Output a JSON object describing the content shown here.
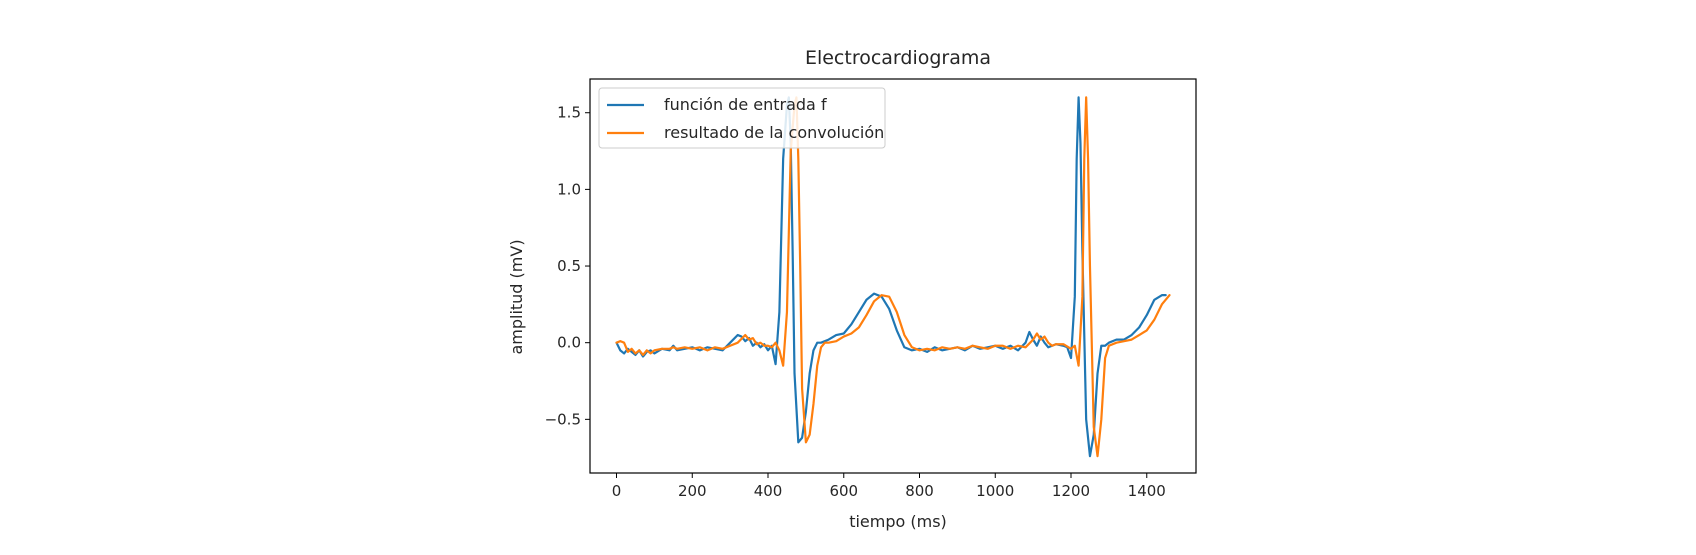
{
  "chart_data": {
    "type": "line",
    "title": "Electrocardiograma",
    "xlabel": "tiempo (ms)",
    "ylabel": "amplitud (mV)",
    "xlim": [
      -70,
      1530
    ],
    "ylim": [
      -0.85,
      1.72
    ],
    "xticks": [
      0,
      200,
      400,
      600,
      800,
      1000,
      1200,
      1400
    ],
    "yticks": [
      -0.5,
      0.0,
      0.5,
      1.0,
      1.5
    ],
    "ytick_labels": [
      "−0.5",
      "0.0",
      "0.5",
      "1.0",
      "1.5"
    ],
    "grid": false,
    "legend_position": "top-left",
    "series": [
      {
        "name": "función de entrada f",
        "color": "#1f77b4",
        "x": [
          0,
          10,
          20,
          30,
          40,
          50,
          60,
          70,
          80,
          90,
          100,
          120,
          140,
          150,
          160,
          180,
          200,
          220,
          240,
          260,
          280,
          300,
          320,
          330,
          340,
          350,
          360,
          370,
          380,
          390,
          400,
          410,
          420,
          430,
          440,
          450,
          455,
          460,
          465,
          470,
          480,
          490,
          500,
          510,
          520,
          530,
          540,
          560,
          580,
          600,
          620,
          640,
          660,
          680,
          700,
          720,
          740,
          760,
          780,
          800,
          820,
          840,
          860,
          880,
          900,
          920,
          940,
          960,
          980,
          1000,
          1020,
          1040,
          1060,
          1080,
          1090,
          1100,
          1110,
          1120,
          1130,
          1140,
          1160,
          1180,
          1190,
          1200,
          1210,
          1215,
          1220,
          1225,
          1230,
          1240,
          1250,
          1260,
          1270,
          1280,
          1290,
          1300,
          1320,
          1340,
          1360,
          1380,
          1400,
          1420,
          1440,
          1450
        ],
        "y": [
          0.0,
          -0.05,
          -0.07,
          -0.04,
          -0.06,
          -0.08,
          -0.05,
          -0.09,
          -0.06,
          -0.05,
          -0.07,
          -0.04,
          -0.05,
          -0.02,
          -0.05,
          -0.04,
          -0.03,
          -0.05,
          -0.03,
          -0.04,
          -0.05,
          0.0,
          0.05,
          0.04,
          0.01,
          0.03,
          -0.02,
          0.0,
          -0.03,
          -0.01,
          -0.05,
          -0.02,
          -0.14,
          0.2,
          1.2,
          1.55,
          1.6,
          1.3,
          0.6,
          -0.2,
          -0.65,
          -0.62,
          -0.45,
          -0.2,
          -0.05,
          0.0,
          0.0,
          0.02,
          0.05,
          0.06,
          0.12,
          0.2,
          0.28,
          0.32,
          0.3,
          0.22,
          0.08,
          -0.03,
          -0.05,
          -0.04,
          -0.06,
          -0.03,
          -0.05,
          -0.04,
          -0.03,
          -0.05,
          -0.02,
          -0.04,
          -0.03,
          -0.02,
          -0.04,
          -0.02,
          -0.05,
          0.0,
          0.07,
          0.02,
          -0.02,
          0.04,
          0.0,
          -0.03,
          -0.01,
          -0.02,
          -0.03,
          -0.1,
          0.3,
          1.2,
          1.6,
          1.3,
          0.6,
          -0.5,
          -0.74,
          -0.6,
          -0.2,
          -0.02,
          -0.02,
          0.0,
          0.02,
          0.02,
          0.05,
          0.1,
          0.18,
          0.28,
          0.31,
          0.31
        ]
      },
      {
        "name": "resultado de la convolución",
        "color": "#ff7f0e",
        "x": [
          0,
          10,
          20,
          30,
          40,
          50,
          60,
          70,
          80,
          90,
          100,
          120,
          140,
          150,
          160,
          180,
          200,
          220,
          240,
          260,
          280,
          300,
          320,
          340,
          350,
          360,
          370,
          380,
          390,
          400,
          410,
          420,
          430,
          440,
          450,
          460,
          470,
          475,
          480,
          485,
          490,
          500,
          510,
          520,
          530,
          540,
          550,
          560,
          580,
          600,
          620,
          640,
          660,
          680,
          700,
          720,
          740,
          760,
          780,
          800,
          820,
          840,
          860,
          880,
          900,
          920,
          940,
          960,
          980,
          1000,
          1020,
          1040,
          1060,
          1080,
          1100,
          1110,
          1120,
          1130,
          1140,
          1150,
          1160,
          1180,
          1200,
          1210,
          1220,
          1230,
          1235,
          1240,
          1245,
          1250,
          1260,
          1270,
          1280,
          1290,
          1300,
          1320,
          1340,
          1360,
          1380,
          1400,
          1420,
          1440,
          1460
        ],
        "y": [
          0.0,
          0.01,
          0.0,
          -0.06,
          -0.04,
          -0.07,
          -0.05,
          -0.08,
          -0.05,
          -0.07,
          -0.05,
          -0.04,
          -0.04,
          -0.03,
          -0.04,
          -0.03,
          -0.04,
          -0.03,
          -0.05,
          -0.03,
          -0.04,
          -0.02,
          0.0,
          0.05,
          0.02,
          0.03,
          -0.01,
          0.0,
          -0.02,
          -0.02,
          -0.03,
          0.0,
          -0.05,
          -0.15,
          0.2,
          1.25,
          1.55,
          1.6,
          1.2,
          0.5,
          -0.3,
          -0.65,
          -0.6,
          -0.4,
          -0.15,
          -0.03,
          0.0,
          0.0,
          0.01,
          0.04,
          0.06,
          0.1,
          0.18,
          0.27,
          0.31,
          0.3,
          0.2,
          0.05,
          -0.03,
          -0.05,
          -0.04,
          -0.05,
          -0.03,
          -0.04,
          -0.03,
          -0.04,
          -0.02,
          -0.03,
          -0.04,
          -0.02,
          -0.02,
          -0.04,
          -0.02,
          -0.03,
          0.02,
          0.06,
          0.02,
          0.04,
          0.0,
          -0.02,
          -0.01,
          -0.01,
          -0.04,
          -0.02,
          -0.15,
          0.3,
          1.2,
          1.6,
          1.2,
          0.5,
          -0.55,
          -0.74,
          -0.5,
          -0.1,
          -0.02,
          0.0,
          0.01,
          0.02,
          0.05,
          0.08,
          0.15,
          0.25,
          0.31
        ]
      }
    ]
  }
}
